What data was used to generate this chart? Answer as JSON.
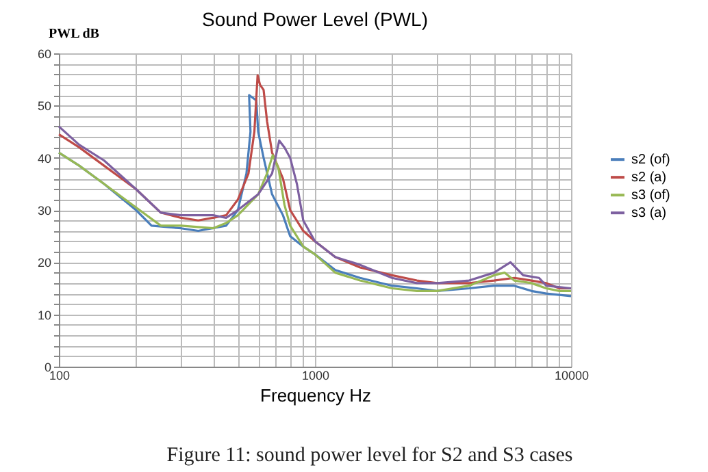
{
  "chart_data": {
    "type": "line",
    "title": "Sound Power Level (PWL)",
    "xlabel": "Frequency Hz",
    "ylabel": "PWL dB",
    "log": "x",
    "grid": true,
    "legend": "right",
    "marker": "none",
    "line_style": "solid",
    "xlim": [
      100,
      10000
    ],
    "ylim": [
      0,
      60
    ],
    "xticks": [
      100,
      {
        "value": 200,
        "label": null
      },
      {
        "value": 300,
        "label": null
      },
      {
        "value": 400,
        "label": null
      },
      {
        "value": 500,
        "label": null
      },
      {
        "value": 600,
        "label": null
      },
      {
        "value": 700,
        "label": null
      },
      {
        "value": 800,
        "label": null
      },
      {
        "value": 900,
        "label": null
      },
      1000,
      {
        "value": 2000,
        "label": null
      },
      {
        "value": 3000,
        "label": null
      },
      {
        "value": 4000,
        "label": null
      },
      {
        "value": 5000,
        "label": null
      },
      {
        "value": 6000,
        "label": null
      },
      {
        "value": 7000,
        "label": null
      },
      {
        "value": 8000,
        "label": null
      },
      {
        "value": 9000,
        "label": null
      },
      10000
    ],
    "yticks": [
      0,
      {
        "value": 2,
        "label": null
      },
      {
        "value": 4,
        "label": null
      },
      {
        "value": 6,
        "label": null
      },
      {
        "value": 8,
        "label": null
      },
      10,
      {
        "value": 12,
        "label": null
      },
      {
        "value": 14,
        "label": null
      },
      {
        "value": 16,
        "label": null
      },
      {
        "value": 18,
        "label": null
      },
      20,
      {
        "value": 22,
        "label": null
      },
      {
        "value": 24,
        "label": null
      },
      {
        "value": 26,
        "label": null
      },
      {
        "value": 28,
        "label": null
      },
      30,
      {
        "value": 32,
        "label": null
      },
      {
        "value": 34,
        "label": null
      },
      {
        "value": 36,
        "label": null
      },
      {
        "value": 38,
        "label": null
      },
      40,
      {
        "value": 42,
        "label": null
      },
      {
        "value": 44,
        "label": null
      },
      {
        "value": 46,
        "label": null
      },
      {
        "value": 48,
        "label": null
      },
      50,
      {
        "value": 52,
        "label": null
      },
      {
        "value": 54,
        "label": null
      },
      {
        "value": 56,
        "label": null
      },
      {
        "value": 58,
        "label": null
      },
      60
    ],
    "annotations": [
      "Figure 11: sound power level for S2 and S3 cases"
    ],
    "series": [
      {
        "name": "s2 (of)",
        "color": "#4a7ebb",
        "x": [
          100,
          120,
          150,
          200,
          230,
          300,
          350,
          450,
          500,
          540,
          560,
          553,
          590,
          600,
          630,
          680,
          750,
          800,
          900,
          1000,
          1200,
          1500,
          2000,
          2500,
          3000,
          4000,
          5000,
          6000,
          7000,
          8000,
          10000
        ],
        "values": [
          41,
          38.5,
          35,
          30,
          27,
          26.5,
          26,
          27,
          30,
          37,
          45,
          52,
          51,
          45,
          40,
          33,
          29,
          25,
          23,
          21.5,
          18.5,
          17,
          15.5,
          15,
          14.5,
          15,
          15.5,
          15.5,
          14.5,
          14,
          13.5
        ]
      },
      {
        "name": "s2 (a)",
        "color": "#be4b48",
        "x": [
          100,
          120,
          150,
          200,
          250,
          300,
          350,
          400,
          450,
          500,
          550,
          580,
          597,
          610,
          630,
          650,
          680,
          750,
          800,
          900,
          1000,
          1200,
          1500,
          2000,
          2500,
          3000,
          4000,
          5000,
          6000,
          7000,
          8000,
          9000,
          10000
        ],
        "values": [
          44.5,
          42,
          38.5,
          34,
          29.5,
          28.5,
          28,
          28.5,
          29,
          32,
          37,
          45,
          55.8,
          54,
          53,
          47,
          41,
          36,
          30,
          26,
          24,
          21,
          19,
          17.5,
          16.5,
          16,
          16,
          16.5,
          17,
          16.5,
          16,
          15,
          15
        ]
      },
      {
        "name": "s3 (of)",
        "color": "#98b954",
        "x": [
          100,
          120,
          150,
          200,
          250,
          300,
          400,
          450,
          500,
          600,
          650,
          684,
          720,
          760,
          800,
          900,
          1000,
          1200,
          1500,
          2000,
          2500,
          3000,
          4000,
          5000,
          5500,
          6000,
          7000,
          8000,
          9000,
          10000
        ],
        "values": [
          41,
          38.5,
          35,
          30.5,
          27,
          27,
          26.5,
          27.5,
          29,
          33,
          37,
          40.5,
          38,
          31,
          27,
          23,
          21.5,
          18,
          16.5,
          15,
          14.5,
          14.5,
          15.5,
          17.5,
          18,
          16.5,
          16,
          15,
          14.5,
          14.5
        ]
      },
      {
        "name": "s3 (a)",
        "color": "#7d60a0",
        "x": [
          100,
          120,
          150,
          200,
          250,
          300,
          400,
          450,
          500,
          600,
          680,
          725,
          760,
          800,
          850,
          900,
          1000,
          1200,
          1500,
          2000,
          2500,
          3000,
          4000,
          5000,
          5800,
          6500,
          7500,
          8000,
          10000
        ],
        "values": [
          46,
          42.5,
          39.5,
          34,
          29.5,
          29,
          29,
          28.5,
          30,
          33,
          37,
          43.3,
          42,
          40,
          35,
          28,
          24,
          21,
          19.5,
          17,
          16,
          16,
          16.5,
          18,
          20,
          17.5,
          17,
          15.5,
          15
        ]
      }
    ]
  }
}
